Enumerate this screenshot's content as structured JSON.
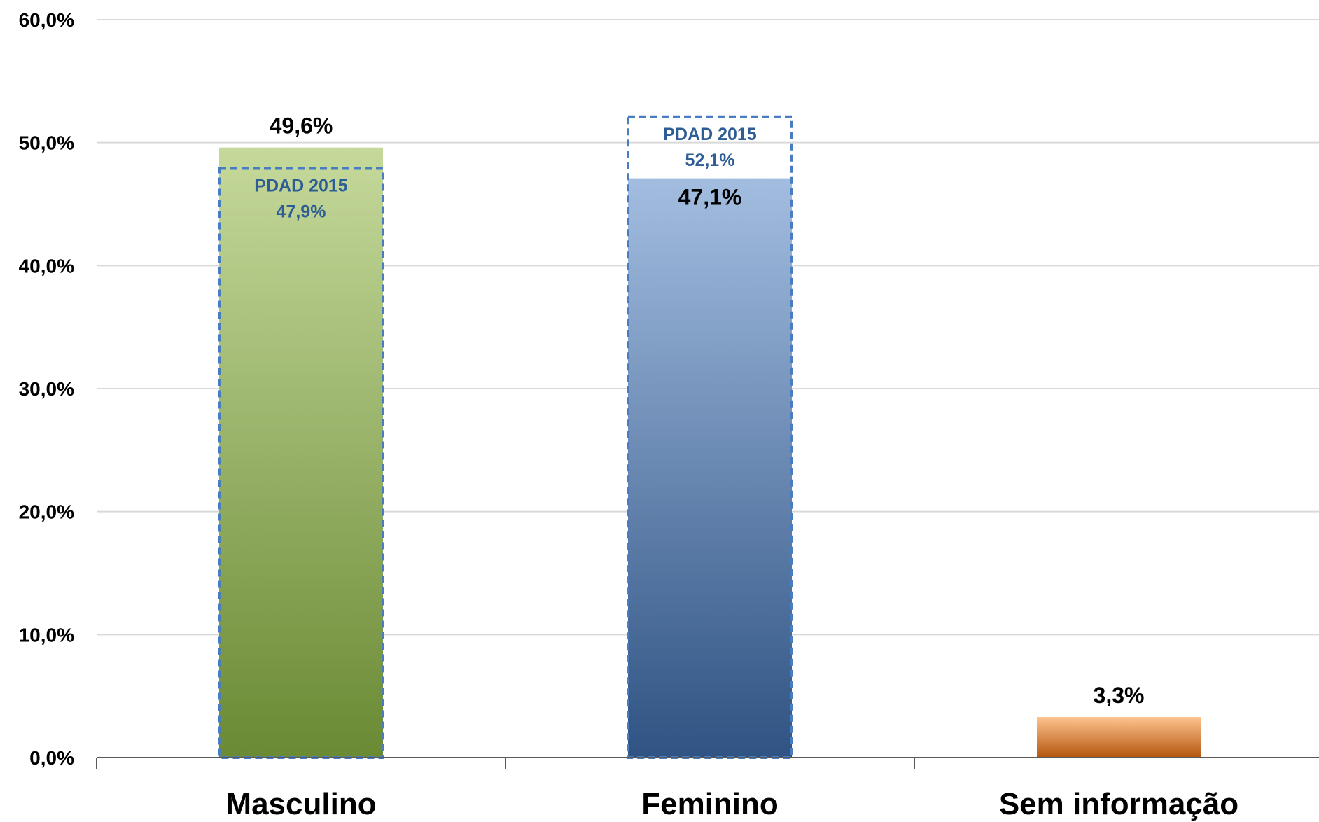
{
  "chart_data": {
    "type": "bar",
    "title": "",
    "xlabel": "",
    "ylabel": "",
    "categories": [
      "Masculino",
      "Feminino",
      "Sem informação"
    ],
    "values": [
      49.6,
      47.1,
      3.3
    ],
    "value_labels": [
      "49,6%",
      "47,1%",
      "3,3%"
    ],
    "ylim": [
      0,
      60
    ],
    "yticks": [
      0,
      10,
      20,
      30,
      40,
      50,
      60
    ],
    "ytick_labels": [
      "0,0%",
      "10,0%",
      "20,0%",
      "30,0%",
      "40,0%",
      "50,0%",
      "60,0%"
    ],
    "grid": true,
    "legend": "none",
    "bar_colors": [
      {
        "top": "#c5d99b",
        "bottom": "#6a8a34"
      },
      {
        "top": "#a3bde0",
        "bottom": "#2f5383"
      },
      {
        "top": "#ffc38f",
        "bottom": "#b3560d"
      }
    ],
    "reference": {
      "name": "PDAD 2015",
      "values": [
        47.9,
        52.1,
        null
      ],
      "value_labels": [
        "47,9%",
        "52,1%",
        ""
      ],
      "style": "dashed-outline",
      "color": "#4a7cc0",
      "label_color": "#2e5d95"
    }
  }
}
